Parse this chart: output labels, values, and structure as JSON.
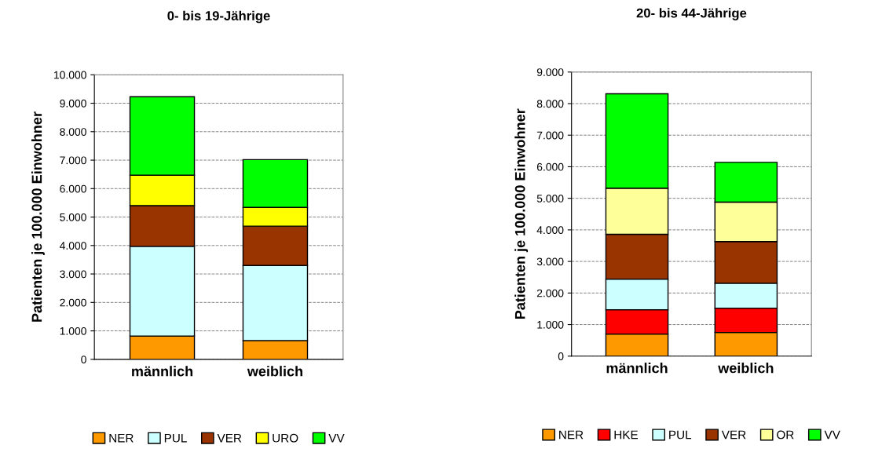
{
  "chart_data": [
    {
      "type": "bar",
      "title": "0- bis 19-Jährige",
      "ylabel": "Patienten je 100.000 Einwohner",
      "categories": [
        "männlich",
        "weiblich"
      ],
      "stacked": true,
      "grid": "y",
      "legend": "bottom",
      "ylim": [
        0,
        10000
      ],
      "yticks": [
        0,
        {
          "value": 1000,
          "label": "1.000"
        },
        {
          "value": 2000,
          "label": "2.000"
        },
        {
          "value": 3000,
          "label": "3.000"
        },
        {
          "value": 4000,
          "label": "4.000"
        },
        {
          "value": 5000,
          "label": "5.000"
        },
        {
          "value": 6000,
          "label": "6.000"
        },
        {
          "value": 7000,
          "label": "7.000"
        },
        {
          "value": 8000,
          "label": "8.000"
        },
        {
          "value": 9000,
          "label": "9.000"
        },
        {
          "value": 10000,
          "label": "10.000"
        }
      ],
      "series": [
        {
          "name": "NER",
          "color": "#ff9900",
          "values": [
            820,
            660
          ]
        },
        {
          "name": "PUL",
          "color": "#ccffff",
          "values": [
            3150,
            2640
          ]
        },
        {
          "name": "VER",
          "color": "#993300",
          "values": [
            1430,
            1380
          ]
        },
        {
          "name": "URO",
          "color": "#ffff00",
          "values": [
            1070,
            660
          ]
        },
        {
          "name": "VV",
          "color": "#00ff00",
          "values": [
            2760,
            1680
          ]
        }
      ]
    },
    {
      "type": "bar",
      "title": "20- bis 44-Jährige",
      "ylabel": "Patienten je 100.000 Einwohner",
      "categories": [
        "männlich",
        "weiblich"
      ],
      "stacked": true,
      "grid": "y",
      "legend": "bottom",
      "ylim": [
        0,
        9000
      ],
      "yticks": [
        0,
        {
          "value": 1000,
          "label": "1.000"
        },
        {
          "value": 2000,
          "label": "2.000"
        },
        {
          "value": 3000,
          "label": "3.000"
        },
        {
          "value": 4000,
          "label": "4.000"
        },
        {
          "value": 5000,
          "label": "5.000"
        },
        {
          "value": 6000,
          "label": "6.000"
        },
        {
          "value": 7000,
          "label": "7.000"
        },
        {
          "value": 8000,
          "label": "8.000"
        },
        {
          "value": 9000,
          "label": "9.000"
        }
      ],
      "series": [
        {
          "name": "NER",
          "color": "#ff9900",
          "values": [
            700,
            750
          ]
        },
        {
          "name": "HKE",
          "color": "#ff0000",
          "values": [
            770,
            770
          ]
        },
        {
          "name": "PUL",
          "color": "#ccffff",
          "values": [
            970,
            790
          ]
        },
        {
          "name": "VER",
          "color": "#993300",
          "values": [
            1420,
            1320
          ]
        },
        {
          "name": "OR",
          "color": "#ffff99",
          "values": [
            1460,
            1250
          ]
        },
        {
          "name": "VV",
          "color": "#00ff00",
          "values": [
            2990,
            1260
          ]
        }
      ]
    }
  ]
}
